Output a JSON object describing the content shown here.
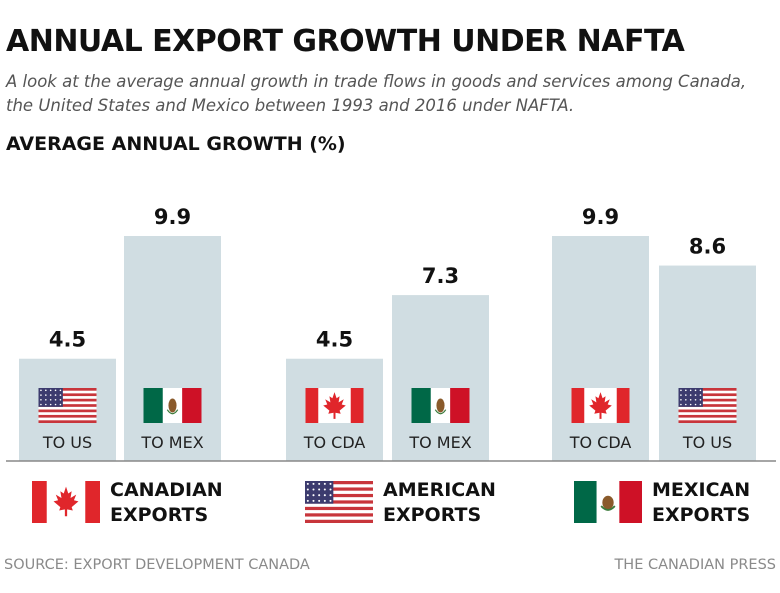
{
  "header": {
    "title": "ANNUAL EXPORT GROWTH UNDER NAFTA",
    "subtitle": "A look at the average annual growth in trade flows in goods and services among Canada, the United States and Mexico between 1993 and 2016 under NAFTA."
  },
  "chart_data": {
    "type": "bar",
    "title": "ANNUAL EXPORT GROWTH UNDER NAFTA",
    "ylabel": "AVERAGE ANNUAL GROWTH (%)",
    "xlabel": "",
    "ylim": [
      0,
      11
    ],
    "grid": false,
    "groups": [
      {
        "name": "CANADIAN EXPORTS",
        "flag": "canada-flag",
        "bars": [
          {
            "label": "TO US",
            "value": 4.5,
            "value_label": "4.5",
            "flag": "us-flag"
          },
          {
            "label": "TO MEX",
            "value": 9.9,
            "value_label": "9.9",
            "flag": "mexico-flag"
          }
        ]
      },
      {
        "name": "AMERICAN EXPORTS",
        "flag": "us-flag",
        "bars": [
          {
            "label": "TO CDA",
            "value": 4.5,
            "value_label": "4.5",
            "flag": "canada-flag"
          },
          {
            "label": "TO MEX",
            "value": 7.3,
            "value_label": "7.3",
            "flag": "mexico-flag"
          }
        ]
      },
      {
        "name": "MEXICAN EXPORTS",
        "flag": "mexico-flag",
        "bars": [
          {
            "label": "TO CDA",
            "value": 9.9,
            "value_label": "9.9",
            "flag": "canada-flag"
          },
          {
            "label": "TO US",
            "value": 8.6,
            "value_label": "8.6",
            "flag": "us-flag"
          }
        ]
      }
    ]
  },
  "legend": {
    "canadian": {
      "line1": "CANADIAN",
      "line2": "EXPORTS"
    },
    "american": {
      "line1": "AMERICAN",
      "line2": "EXPORTS"
    },
    "mexican": {
      "line1": "MEXICAN",
      "line2": "EXPORTS"
    }
  },
  "footer": {
    "source": "SOURCE: EXPORT DEVELOPMENT CANADA",
    "credit": "THE CANADIAN PRESS"
  },
  "colors": {
    "bar": "#d0dde2",
    "baseline": "#888888",
    "canada_red": "#e0262b",
    "us_red": "#c8353b",
    "us_blue": "#3c3b6e",
    "mexico_green": "#006847",
    "mexico_red": "#ce1126"
  }
}
